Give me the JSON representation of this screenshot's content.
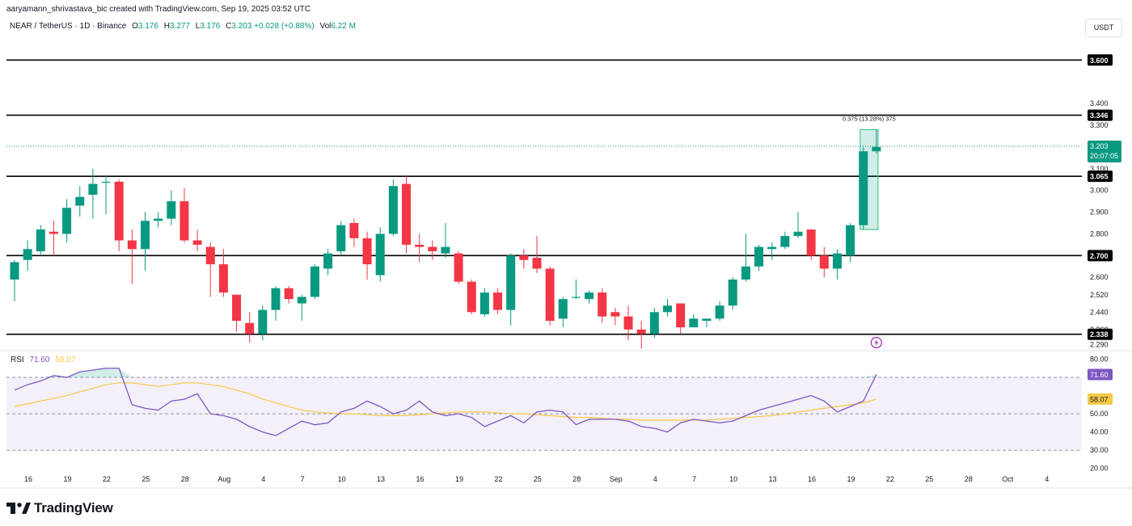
{
  "header": {
    "attribution": "aaryamann_shrivastava_bic created with TradingView.com, Sep 19, 2025 03:52 UTC",
    "symbol": "NEAR / TetherUS · 1D · Binance",
    "open_label": "O",
    "open_value": "3.176",
    "high_label": "H",
    "high_value": "3.277",
    "low_label": "L",
    "low_value": "3.176",
    "close_label": "C",
    "close_value": "3.203",
    "change": "+0.028 (+0.88%)",
    "volume_label": "Vol",
    "volume_value": "6.22 M"
  },
  "currency_button": "USDT",
  "rsi": {
    "name": "RSI",
    "value": "71.60",
    "ma_value": "58.07"
  },
  "logo_text": "TradingView",
  "colors": {
    "up": "#089981",
    "down": "#f23645",
    "rsi": "#7e57c2",
    "rsi_ma": "#f7c948",
    "accent": "#089981"
  },
  "chart_data": {
    "type": "candlestick",
    "price_axis": {
      "labels": [
        "3.400",
        "3.300",
        "3.100",
        "3.000",
        "2.900",
        "2.800",
        "2.600",
        "2.520",
        "2.440",
        "2.360",
        "2.290"
      ],
      "ylim": [
        2.27,
        3.72
      ]
    },
    "levels": [
      3.6,
      3.346,
      3.065,
      2.7,
      2.338
    ],
    "level_labels": [
      "3.600",
      "3.346",
      "3.065",
      "2.700",
      "2.338"
    ],
    "current_price": "3.203",
    "countdown": "20:07:05",
    "measure_label": "0.375 (13.28%) 375",
    "x_ticks": [
      "16",
      "19",
      "22",
      "25",
      "28",
      "Aug",
      "4",
      "7",
      "10",
      "13",
      "16",
      "19",
      "22",
      "25",
      "28",
      "Sep",
      "4",
      "7",
      "10",
      "13",
      "16",
      "19",
      "22",
      "25",
      "28",
      "Oct",
      "4"
    ],
    "candles": [
      [
        2.59,
        2.68,
        2.49,
        2.67
      ],
      [
        2.68,
        2.77,
        2.63,
        2.73
      ],
      [
        2.72,
        2.84,
        2.7,
        2.82
      ],
      [
        2.81,
        2.86,
        2.7,
        2.8
      ],
      [
        2.8,
        2.96,
        2.76,
        2.92
      ],
      [
        2.93,
        3.02,
        2.88,
        2.97
      ],
      [
        2.98,
        3.1,
        2.87,
        3.03
      ],
      [
        3.04,
        3.07,
        2.89,
        3.04
      ],
      [
        3.04,
        3.05,
        2.72,
        2.77
      ],
      [
        2.77,
        2.82,
        2.57,
        2.73
      ],
      [
        2.73,
        2.9,
        2.63,
        2.86
      ],
      [
        2.86,
        2.9,
        2.83,
        2.87
      ],
      [
        2.87,
        3.0,
        2.84,
        2.95
      ],
      [
        2.95,
        3.01,
        2.76,
        2.77
      ],
      [
        2.77,
        2.82,
        2.72,
        2.75
      ],
      [
        2.74,
        2.76,
        2.51,
        2.66
      ],
      [
        2.66,
        2.73,
        2.51,
        2.53
      ],
      [
        2.52,
        2.52,
        2.35,
        2.4
      ],
      [
        2.39,
        2.44,
        2.3,
        2.34
      ],
      [
        2.34,
        2.47,
        2.31,
        2.45
      ],
      [
        2.45,
        2.56,
        2.4,
        2.55
      ],
      [
        2.55,
        2.56,
        2.48,
        2.5
      ],
      [
        2.48,
        2.52,
        2.4,
        2.51
      ],
      [
        2.51,
        2.66,
        2.5,
        2.65
      ],
      [
        2.64,
        2.73,
        2.61,
        2.71
      ],
      [
        2.72,
        2.86,
        2.7,
        2.84
      ],
      [
        2.85,
        2.87,
        2.74,
        2.78
      ],
      [
        2.78,
        2.81,
        2.59,
        2.66
      ],
      [
        2.61,
        2.83,
        2.58,
        2.8
      ],
      [
        2.8,
        3.05,
        2.79,
        3.02
      ],
      [
        3.03,
        3.07,
        2.71,
        2.75
      ],
      [
        2.75,
        2.8,
        2.67,
        2.74
      ],
      [
        2.74,
        2.77,
        2.68,
        2.72
      ],
      [
        2.71,
        2.85,
        2.69,
        2.74
      ],
      [
        2.71,
        2.72,
        2.57,
        2.58
      ],
      [
        2.58,
        2.59,
        2.43,
        2.44
      ],
      [
        2.43,
        2.55,
        2.42,
        2.53
      ],
      [
        2.53,
        2.55,
        2.43,
        2.45
      ],
      [
        2.45,
        2.71,
        2.38,
        2.7
      ],
      [
        2.7,
        2.73,
        2.64,
        2.68
      ],
      [
        2.69,
        2.79,
        2.62,
        2.64
      ],
      [
        2.64,
        2.65,
        2.38,
        2.4
      ],
      [
        2.41,
        2.51,
        2.37,
        2.5
      ],
      [
        2.51,
        2.59,
        2.5,
        2.51
      ],
      [
        2.5,
        2.54,
        2.48,
        2.53
      ],
      [
        2.53,
        2.55,
        2.39,
        2.42
      ],
      [
        2.44,
        2.46,
        2.38,
        2.42
      ],
      [
        2.42,
        2.47,
        2.31,
        2.36
      ],
      [
        2.36,
        2.4,
        2.27,
        2.34
      ],
      [
        2.34,
        2.46,
        2.32,
        2.44
      ],
      [
        2.44,
        2.5,
        2.42,
        2.47
      ],
      [
        2.48,
        2.48,
        2.34,
        2.37
      ],
      [
        2.37,
        2.43,
        2.37,
        2.41
      ],
      [
        2.4,
        2.41,
        2.37,
        2.41
      ],
      [
        2.41,
        2.49,
        2.4,
        2.47
      ],
      [
        2.47,
        2.6,
        2.45,
        2.59
      ],
      [
        2.59,
        2.8,
        2.58,
        2.65
      ],
      [
        2.65,
        2.75,
        2.63,
        2.74
      ],
      [
        2.73,
        2.76,
        2.68,
        2.74
      ],
      [
        2.74,
        2.81,
        2.73,
        2.79
      ],
      [
        2.79,
        2.9,
        2.78,
        2.81
      ],
      [
        2.82,
        2.82,
        2.68,
        2.7
      ],
      [
        2.7,
        2.74,
        2.6,
        2.64
      ],
      [
        2.64,
        2.73,
        2.59,
        2.71
      ],
      [
        2.7,
        2.85,
        2.67,
        2.84
      ],
      [
        2.84,
        3.2,
        2.82,
        3.18
      ],
      [
        3.18,
        3.28,
        3.17,
        3.2
      ]
    ],
    "rsi_axis": {
      "labels": [
        "80.00",
        "50.00",
        "40.00",
        "30.00",
        "20.00"
      ],
      "ylim": [
        19,
        82
      ],
      "upper": 70,
      "lower": 30,
      "mid": 50
    },
    "rsi_values": [
      63,
      66,
      68,
      71,
      70,
      73,
      74,
      75,
      75,
      55,
      53,
      52,
      57,
      58,
      61,
      50,
      49,
      47,
      43,
      40,
      38,
      42,
      46,
      44,
      45,
      51,
      53,
      57,
      54,
      50,
      52,
      57,
      51,
      49,
      50,
      48,
      43,
      46,
      49,
      45,
      51,
      52,
      51,
      44,
      47,
      47,
      47,
      46,
      43,
      42,
      40,
      45,
      47,
      46,
      45,
      46,
      49,
      52,
      54,
      56,
      58,
      60,
      57,
      51,
      54,
      57,
      71.6
    ],
    "rsi_ma_values": [
      54,
      55.5,
      57,
      58.5,
      60,
      62,
      64,
      66,
      67,
      67,
      66,
      65,
      66,
      67,
      67,
      66,
      65,
      63,
      61,
      58,
      56,
      54,
      52,
      51,
      50.5,
      50,
      50,
      49.5,
      49,
      49,
      49,
      49.5,
      50,
      50.5,
      51,
      51,
      51,
      50.5,
      50,
      50,
      49.5,
      49,
      48.5,
      48,
      48,
      47.5,
      47,
      47,
      46.5,
      46.5,
      46.5,
      46.5,
      46.5,
      46.5,
      47,
      47.5,
      48,
      48.5,
      49,
      50,
      51,
      52,
      53,
      54,
      55,
      56,
      58.07
    ]
  }
}
